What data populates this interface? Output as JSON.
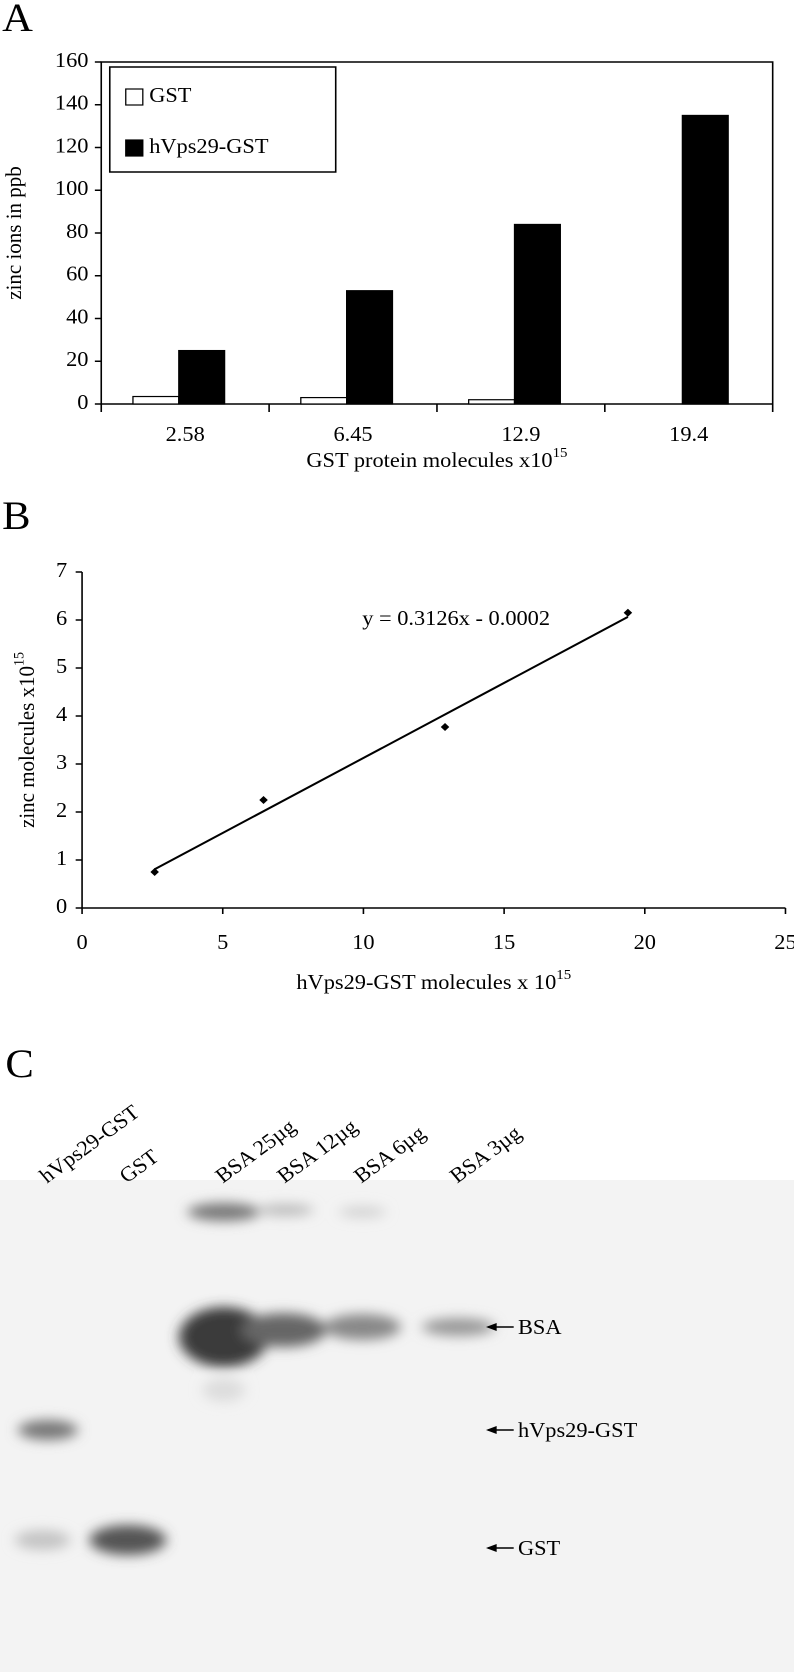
{
  "chart_data": [
    {
      "type": "bar",
      "panel": "A",
      "categories": [
        "2.58",
        "6.45",
        "12.9",
        "19.4"
      ],
      "series": [
        {
          "name": "GST",
          "color": "#ffffff",
          "values": [
            3.5,
            3,
            2,
            0
          ]
        },
        {
          "name": "hVps29-GST",
          "color": "#000000",
          "values": [
            25,
            53,
            84,
            135
          ]
        }
      ],
      "xlabel": "GST protein molecules x10",
      "xlabel_sup": "15",
      "ylabel": "zinc ions in ppb",
      "ylim": [
        0,
        160
      ],
      "yticks": [
        0,
        20,
        40,
        60,
        80,
        100,
        120,
        140,
        160
      ],
      "legend": "top-left"
    },
    {
      "type": "scatter",
      "panel": "B",
      "x": [
        2.58,
        6.45,
        12.9,
        19.4
      ],
      "values": [
        0.75,
        2.25,
        3.77,
        6.15
      ],
      "color": "#000000",
      "trendline": {
        "label": "y = 0.3126x - 0.0002",
        "slope": 0.3126,
        "intercept": -0.0002
      },
      "xlabel": "hVps29-GST molecules x 10",
      "xlabel_sup": "15",
      "ylabel": "zinc molecules x10",
      "ylabel_sup": "15",
      "xlim": [
        0,
        25
      ],
      "xticks": [
        0,
        5,
        10,
        15,
        20,
        25
      ],
      "ylim": [
        0,
        7
      ],
      "yticks": [
        0,
        1,
        2,
        3,
        4,
        5,
        6,
        7
      ]
    }
  ],
  "gel": {
    "panel": "C",
    "lanes": [
      "hVps29-GST",
      "GST",
      "BSA 25µg",
      "BSA 12µg",
      "BSA 6µg",
      "BSA 3µg"
    ],
    "bands": [
      "BSA",
      "hVps29-GST",
      "GST"
    ]
  }
}
